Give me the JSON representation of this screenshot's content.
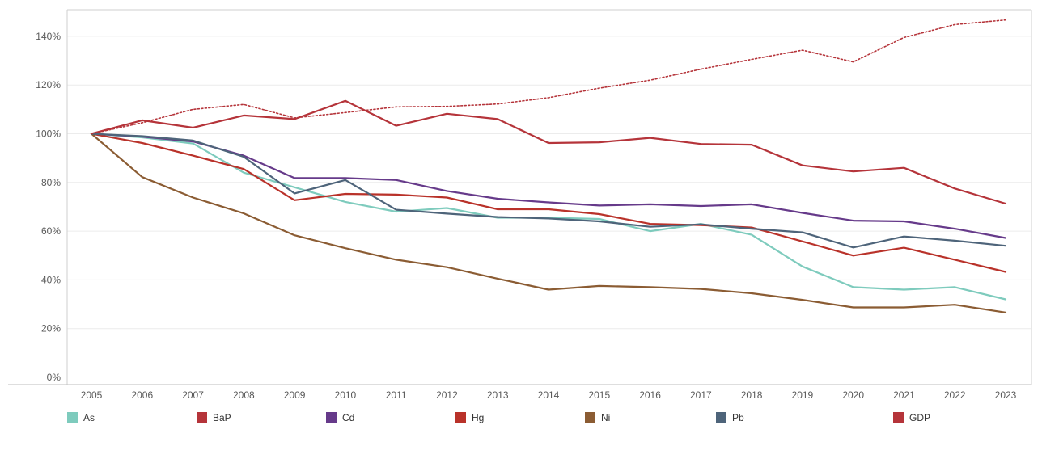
{
  "chart_data": {
    "type": "line",
    "x": [
      "2005",
      "2006",
      "2007",
      "2008",
      "2009",
      "2010",
      "2011",
      "2012",
      "2013",
      "2014",
      "2015",
      "2016",
      "2017",
      "2018",
      "2019",
      "2020",
      "2021",
      "2022",
      "2023"
    ],
    "yticks": [
      "0%",
      "20%",
      "40%",
      "60%",
      "80%",
      "100%",
      "120%",
      "140%"
    ],
    "ylim": [
      0,
      150
    ],
    "grid": true,
    "legend_position": "bottom",
    "series": [
      {
        "name": "As",
        "color": "#7ecbbd",
        "dashed": false,
        "values": [
          100,
          98.5,
          96,
          84,
          78,
          72,
          68,
          69.5,
          65.5,
          65.5,
          65,
          60,
          63,
          58.5,
          45.5,
          37,
          36,
          37,
          32
        ]
      },
      {
        "name": "BaP",
        "color": "#b5343a",
        "dashed": false,
        "values": [
          100,
          105.5,
          102.5,
          107.5,
          106,
          113.5,
          103.3,
          108.2,
          106,
          96.2,
          96.5,
          98.3,
          95.8,
          95.5,
          87,
          84.5,
          86,
          77.5,
          71.3
        ]
      },
      {
        "name": "Cd",
        "color": "#663a8a",
        "dashed": false,
        "values": [
          100,
          98.8,
          96.8,
          91,
          81.8,
          81.8,
          81,
          76.5,
          73.3,
          71.8,
          70.5,
          71,
          70.3,
          71,
          67.5,
          64.3,
          64,
          61,
          57.2
        ]
      },
      {
        "name": "Hg",
        "color": "#b9322a",
        "dashed": false,
        "values": [
          100,
          96.2,
          91,
          85.5,
          72.7,
          75.3,
          75,
          73.8,
          69,
          69,
          67,
          63,
          62.5,
          61.5,
          55.8,
          50,
          53.2,
          48.3,
          43.3
        ]
      },
      {
        "name": "Ni",
        "color": "#8b5c33",
        "dashed": false,
        "values": [
          100,
          82.2,
          73.8,
          67.3,
          58.3,
          53,
          48.3,
          45.2,
          40.5,
          36,
          37.5,
          37,
          36.3,
          34.5,
          31.8,
          28.7,
          28.7,
          29.8,
          26.6
        ]
      },
      {
        "name": "Pb",
        "color": "#4e647a",
        "dashed": false,
        "values": [
          100,
          99,
          97.2,
          90.5,
          75.5,
          81,
          68.8,
          67.2,
          65.8,
          65.2,
          64,
          61.8,
          62.8,
          61,
          59.5,
          53.3,
          57.8,
          56.1,
          54
        ]
      },
      {
        "name": "GDP",
        "color": "#b5343a",
        "dashed": true,
        "values": [
          100,
          104.5,
          110,
          112,
          106.5,
          108.7,
          111,
          111.2,
          112.2,
          114.8,
          118.7,
          122,
          126.5,
          130.5,
          134.3,
          129.5,
          139.5,
          144.8,
          146.7
        ]
      }
    ]
  }
}
